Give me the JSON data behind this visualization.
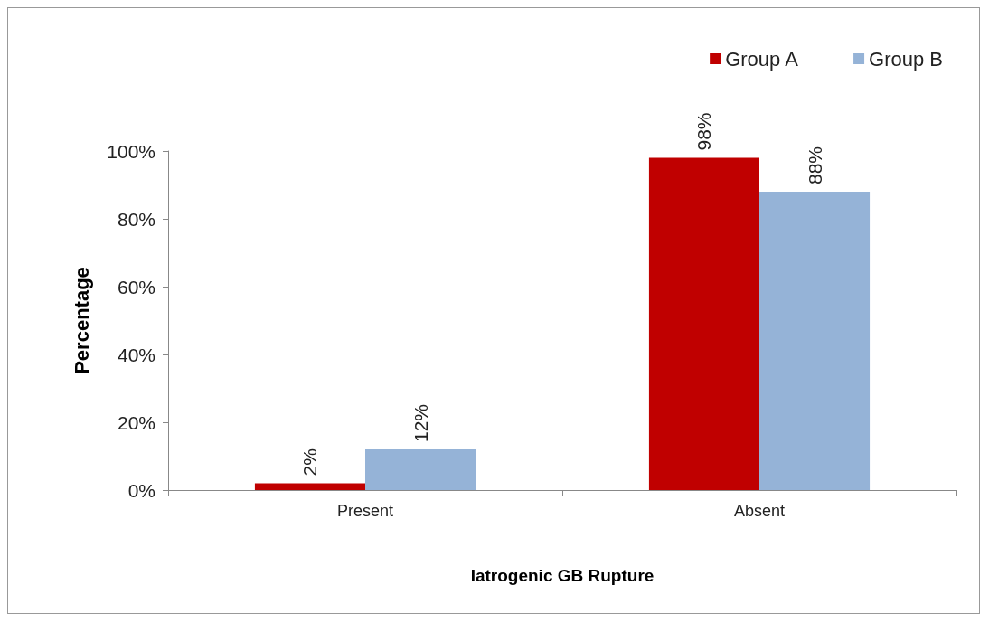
{
  "chart_data": {
    "type": "bar",
    "xlabel": "Iatrogenic GB Rupture",
    "ylabel": "Percentage",
    "categories": [
      "Present",
      "Absent"
    ],
    "series": [
      {
        "name": "Group A",
        "color": "#c00000",
        "values": [
          2,
          98
        ],
        "value_labels": [
          "2%",
          "98%"
        ]
      },
      {
        "name": "Group B",
        "color": "#95b3d7",
        "values": [
          12,
          88
        ],
        "value_labels": [
          "12%",
          "88%"
        ]
      }
    ],
    "ylim": [
      0,
      100
    ],
    "yticks": [
      {
        "value": 0,
        "label": "0%"
      },
      {
        "value": 20,
        "label": "20%"
      },
      {
        "value": 40,
        "label": "40%"
      },
      {
        "value": 60,
        "label": "60%"
      },
      {
        "value": 80,
        "label": "80%"
      },
      {
        "value": 100,
        "label": "100%"
      }
    ],
    "grid": false,
    "legend": "top right"
  }
}
